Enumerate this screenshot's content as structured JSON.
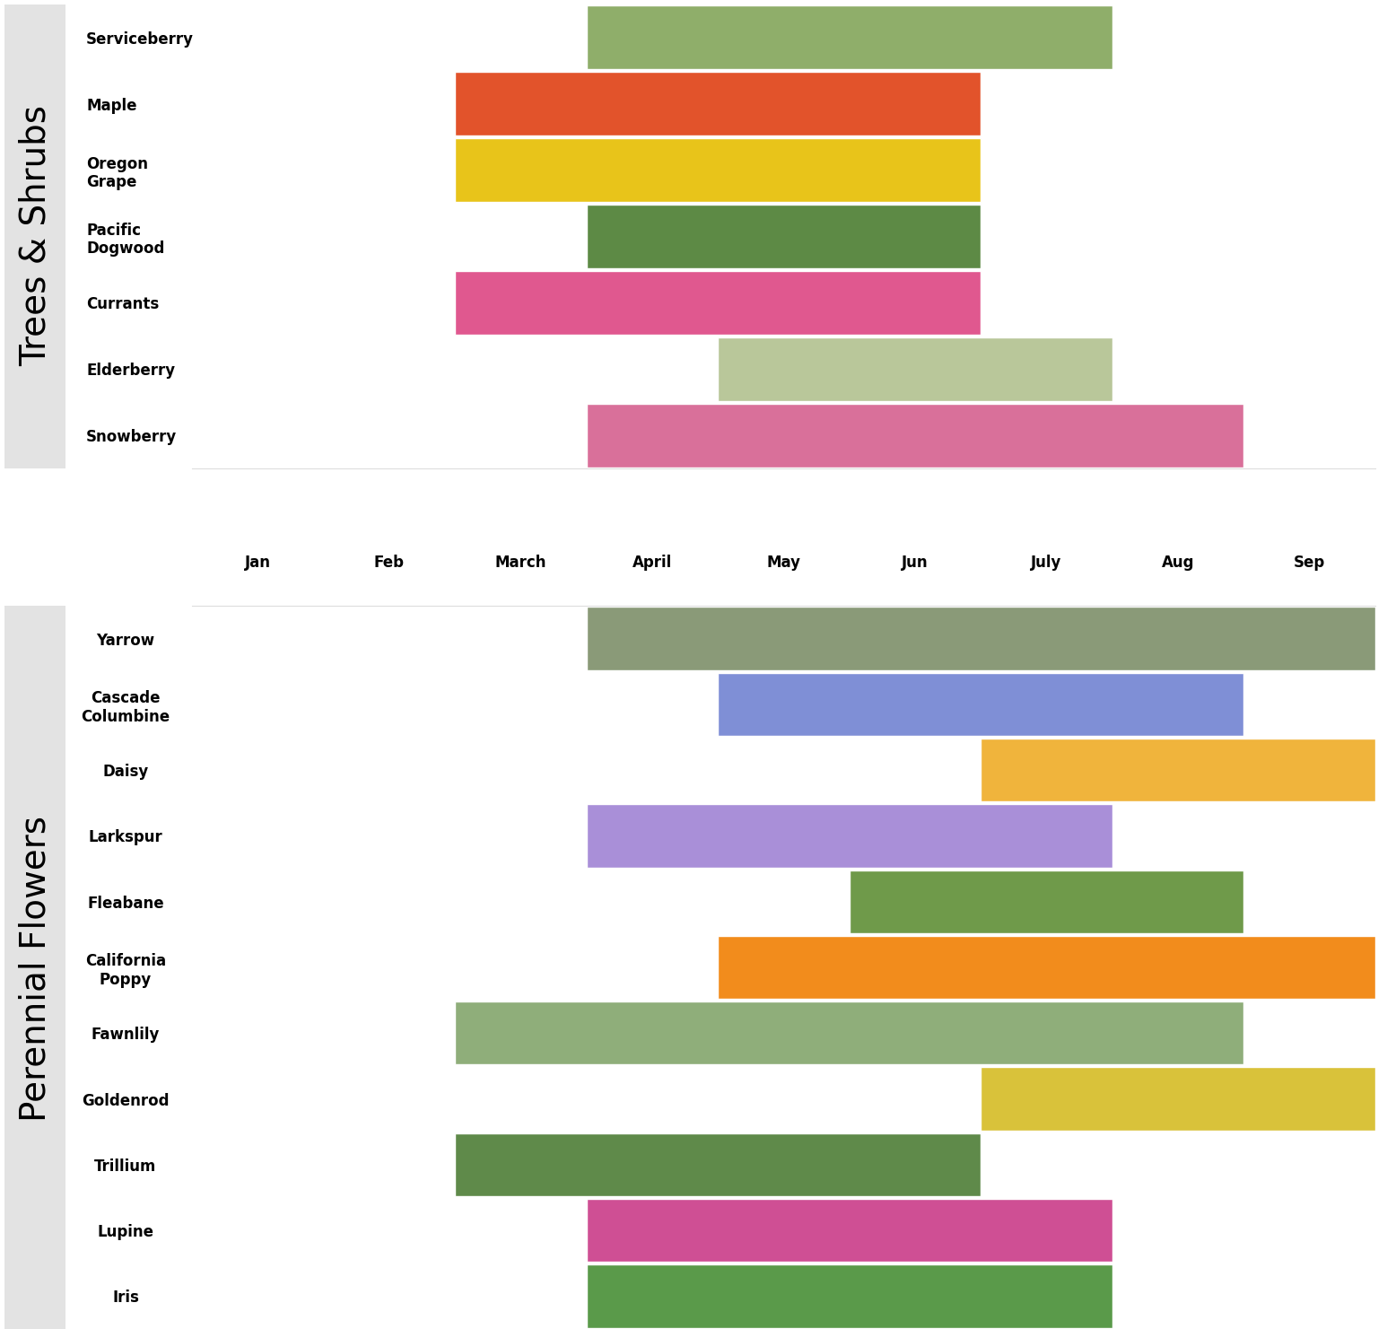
{
  "chart_data": [
    {
      "type": "gantt",
      "title": "Trees & Shrubs",
      "orientation": "horizontal",
      "tick_labels": "y",
      "categories": [
        "Serviceberry",
        "Maple",
        "Oregon\nGrape",
        "Pacific\nDogwood",
        "Currants",
        "Elderberry",
        "Snowberry"
      ],
      "start": [
        3,
        2,
        2,
        3,
        2,
        4,
        3
      ],
      "end": [
        7,
        6,
        6,
        6,
        6,
        7,
        8
      ],
      "colors": [
        "#8fae6a",
        "#e2532b",
        "#e8c41a",
        "#5d8a45",
        "#e0588f",
        "#b9c79a",
        "#d9709a"
      ],
      "xlim": [
        0,
        9
      ]
    },
    {
      "type": "gantt",
      "title": "Perennial Flowers",
      "orientation": "horizontal",
      "categories": [
        "Yarrow",
        "Cascade\nColumbine",
        "Daisy",
        "Larkspur",
        "Fleabane",
        "California\nPoppy",
        "Fawnlily",
        "Goldenrod",
        "Trillium",
        "Lupine",
        "Iris"
      ],
      "start": [
        3,
        4,
        6,
        3,
        5,
        4,
        2,
        6,
        2,
        3,
        3
      ],
      "end": [
        9,
        8,
        9,
        7,
        8,
        9,
        8,
        9,
        6,
        7,
        7
      ],
      "colors": [
        "#8a9a78",
        "#7f8fd6",
        "#f0b43c",
        "#a98fd8",
        "#6f9a4a",
        "#f28c1c",
        "#8fae7a",
        "#d9c23a",
        "#5f8a4a",
        "#cf4f94",
        "#5a9a4a"
      ],
      "xlim": [
        0,
        9
      ],
      "xticks": [
        {
          "value": 0.5,
          "label": "Jan"
        },
        {
          "value": 1.5,
          "label": "Feb"
        },
        {
          "value": 2.5,
          "label": "March"
        },
        {
          "value": 3.5,
          "label": "April"
        },
        {
          "value": 4.5,
          "label": "May"
        },
        {
          "value": 5.5,
          "label": "Jun"
        },
        {
          "value": 6.5,
          "label": "July"
        },
        {
          "value": 7.5,
          "label": "Aug"
        },
        {
          "value": 8.5,
          "label": "Sep"
        }
      ]
    }
  ]
}
